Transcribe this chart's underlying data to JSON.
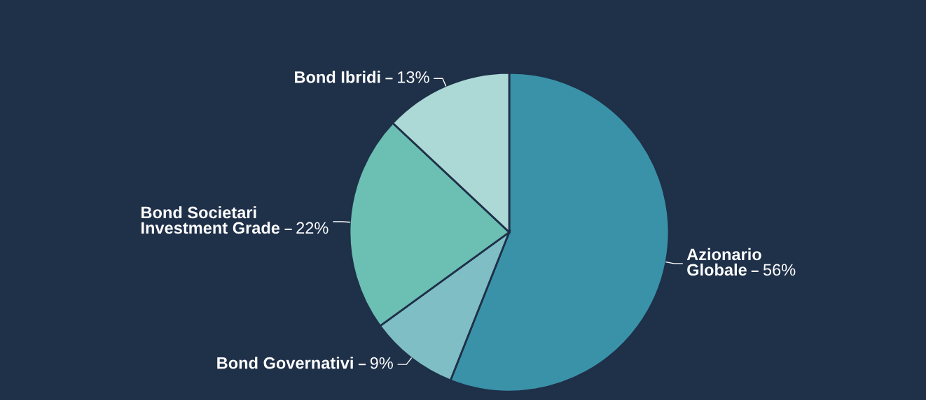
{
  "chart_data": {
    "type": "pie",
    "categories": [
      "Azionario\nGlobale",
      "Bond Governativi",
      "Bond Societari\nInvestment Grade",
      "Bond Ibridi"
    ],
    "values": [
      56,
      9,
      22,
      13
    ],
    "value_labels": [
      "56%",
      "9%",
      "22%",
      "13%"
    ],
    "colors": [
      "#3a92a8",
      "#7fbec4",
      "#6bbfb3",
      "#acd9d6"
    ]
  }
}
